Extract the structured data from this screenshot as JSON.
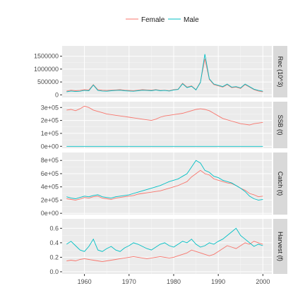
{
  "chart_data": {
    "type": "line",
    "legend": {
      "position": "top",
      "entries": [
        "Female",
        "Male"
      ]
    },
    "colors": {
      "Female": "#f8766d",
      "Male": "#00bfc4",
      "panel_bg": "#ebebeb",
      "strip_bg": "#d9d9d9",
      "grid": "#ffffff"
    },
    "x": {
      "ticks": [
        1960,
        1970,
        1980,
        1990,
        2000
      ],
      "range": [
        1955,
        2002
      ]
    },
    "years": [
      1956,
      1957,
      1958,
      1959,
      1960,
      1961,
      1962,
      1963,
      1964,
      1965,
      1966,
      1967,
      1968,
      1969,
      1970,
      1971,
      1972,
      1973,
      1974,
      1975,
      1976,
      1977,
      1978,
      1979,
      1980,
      1981,
      1982,
      1983,
      1984,
      1985,
      1986,
      1987,
      1988,
      1989,
      1990,
      1991,
      1992,
      1993,
      1994,
      1995,
      1996,
      1997,
      1998,
      1999,
      2000
    ],
    "panels": [
      {
        "strip": "Rec (10^3)",
        "ylim": [
          -100000,
          1900000
        ],
        "yticks": [
          {
            "value": 1500000,
            "label": "1500000"
          },
          {
            "value": 1000000,
            "label": "1000000"
          },
          {
            "value": 500000,
            "label": "500000"
          },
          {
            "value": 0,
            "label": "0"
          }
        ],
        "series": [
          {
            "name": "Female",
            "values": [
              150000,
              180000,
              160000,
              170000,
              200000,
              190000,
              400000,
              200000,
              180000,
              170000,
              180000,
              190000,
              200000,
              180000,
              170000,
              160000,
              180000,
              200000,
              190000,
              180000,
              200000,
              170000,
              180000,
              160000,
              200000,
              220000,
              450000,
              300000,
              350000,
              200000,
              500000,
              1400000,
              600000,
              400000,
              350000,
              300000,
              400000,
              280000,
              300000,
              250000,
              400000,
              300000,
              200000,
              150000,
              120000
            ]
          },
          {
            "name": "Male",
            "values": [
              120000,
              150000,
              130000,
              140000,
              170000,
              160000,
              380000,
              170000,
              150000,
              140000,
              160000,
              170000,
              180000,
              160000,
              150000,
              140000,
              160000,
              180000,
              170000,
              160000,
              190000,
              160000,
              170000,
              150000,
              190000,
              210000,
              430000,
              280000,
              330000,
              190000,
              480000,
              1580000,
              620000,
              420000,
              370000,
              320000,
              420000,
              300000,
              320000,
              270000,
              420000,
              320000,
              220000,
              170000,
              140000
            ]
          }
        ]
      },
      {
        "strip": "SSB (t)",
        "ylim": [
          -15000,
          345000
        ],
        "yticks": [
          {
            "value": 300000,
            "label": "3e+05"
          },
          {
            "value": 200000,
            "label": "2e+05"
          },
          {
            "value": 100000,
            "label": "1e+05"
          },
          {
            "value": 0,
            "label": "0e+00"
          }
        ],
        "series": [
          {
            "name": "Female",
            "values": [
              280000,
              285000,
              275000,
              290000,
              310000,
              300000,
              280000,
              270000,
              260000,
              250000,
              245000,
              240000,
              235000,
              230000,
              225000,
              220000,
              215000,
              210000,
              205000,
              200000,
              210000,
              225000,
              235000,
              240000,
              245000,
              250000,
              255000,
              265000,
              275000,
              285000,
              290000,
              285000,
              275000,
              255000,
              235000,
              215000,
              205000,
              195000,
              185000,
              175000,
              170000,
              165000,
              175000,
              180000,
              185000
            ]
          },
          {
            "name": "Male",
            "values": [
              0,
              0,
              0,
              0,
              0,
              0,
              0,
              0,
              0,
              0,
              0,
              0,
              0,
              0,
              0,
              0,
              0,
              0,
              0,
              0,
              0,
              0,
              0,
              0,
              0,
              0,
              0,
              0,
              0,
              0,
              0,
              0,
              0,
              0,
              0,
              0,
              0,
              0,
              0,
              0,
              0,
              0,
              0,
              0,
              0
            ]
          }
        ]
      },
      {
        "strip": "Catch (t)",
        "ylim": [
          -20000,
          920000
        ],
        "yticks": [
          {
            "value": 800000,
            "label": "8e+05"
          },
          {
            "value": 600000,
            "label": "6e+05"
          },
          {
            "value": 400000,
            "label": "4e+05"
          },
          {
            "value": 200000,
            "label": "2e+05"
          },
          {
            "value": 0,
            "label": "0e+00"
          }
        ],
        "series": [
          {
            "name": "Female",
            "values": [
              220000,
              210000,
              200000,
              215000,
              240000,
              230000,
              250000,
              260000,
              230000,
              220000,
              210000,
              230000,
              240000,
              250000,
              260000,
              270000,
              290000,
              300000,
              310000,
              320000,
              330000,
              340000,
              360000,
              380000,
              400000,
              420000,
              450000,
              480000,
              550000,
              600000,
              650000,
              600000,
              580000,
              520000,
              500000,
              480000,
              460000,
              450000,
              420000,
              380000,
              350000,
              300000,
              280000,
              250000,
              260000
            ]
          },
          {
            "name": "Male",
            "values": [
              250000,
              230000,
              220000,
              240000,
              260000,
              250000,
              270000,
              280000,
              250000,
              240000,
              230000,
              250000,
              260000,
              270000,
              280000,
              300000,
              320000,
              340000,
              360000,
              380000,
              400000,
              420000,
              450000,
              480000,
              500000,
              520000,
              560000,
              600000,
              700000,
              800000,
              760000,
              650000,
              620000,
              560000,
              540000,
              500000,
              480000,
              460000,
              420000,
              380000,
              330000,
              260000,
              220000,
              200000,
              210000
            ]
          }
        ]
      },
      {
        "strip": "Harvest (f)",
        "ylim": [
          -0.03,
          0.73
        ],
        "yticks": [
          {
            "value": 0.6,
            "label": "0.6"
          },
          {
            "value": 0.4,
            "label": "0.4"
          },
          {
            "value": 0.2,
            "label": "0.2"
          },
          {
            "value": 0.0,
            "label": "0.0"
          }
        ],
        "series": [
          {
            "name": "Female",
            "values": [
              0.15,
              0.16,
              0.15,
              0.17,
              0.18,
              0.17,
              0.16,
              0.15,
              0.14,
              0.15,
              0.16,
              0.17,
              0.18,
              0.19,
              0.2,
              0.21,
              0.2,
              0.19,
              0.18,
              0.19,
              0.2,
              0.21,
              0.2,
              0.19,
              0.2,
              0.22,
              0.24,
              0.26,
              0.3,
              0.28,
              0.26,
              0.24,
              0.22,
              0.24,
              0.28,
              0.32,
              0.36,
              0.34,
              0.32,
              0.36,
              0.4,
              0.38,
              0.42,
              0.4,
              0.38
            ]
          },
          {
            "name": "Male",
            "values": [
              0.38,
              0.42,
              0.36,
              0.3,
              0.28,
              0.35,
              0.45,
              0.3,
              0.28,
              0.32,
              0.35,
              0.3,
              0.28,
              0.33,
              0.36,
              0.4,
              0.38,
              0.35,
              0.32,
              0.3,
              0.34,
              0.38,
              0.4,
              0.36,
              0.34,
              0.38,
              0.42,
              0.4,
              0.45,
              0.38,
              0.34,
              0.36,
              0.4,
              0.38,
              0.42,
              0.45,
              0.5,
              0.55,
              0.6,
              0.5,
              0.45,
              0.4,
              0.35,
              0.38,
              0.36
            ]
          }
        ]
      }
    ]
  }
}
